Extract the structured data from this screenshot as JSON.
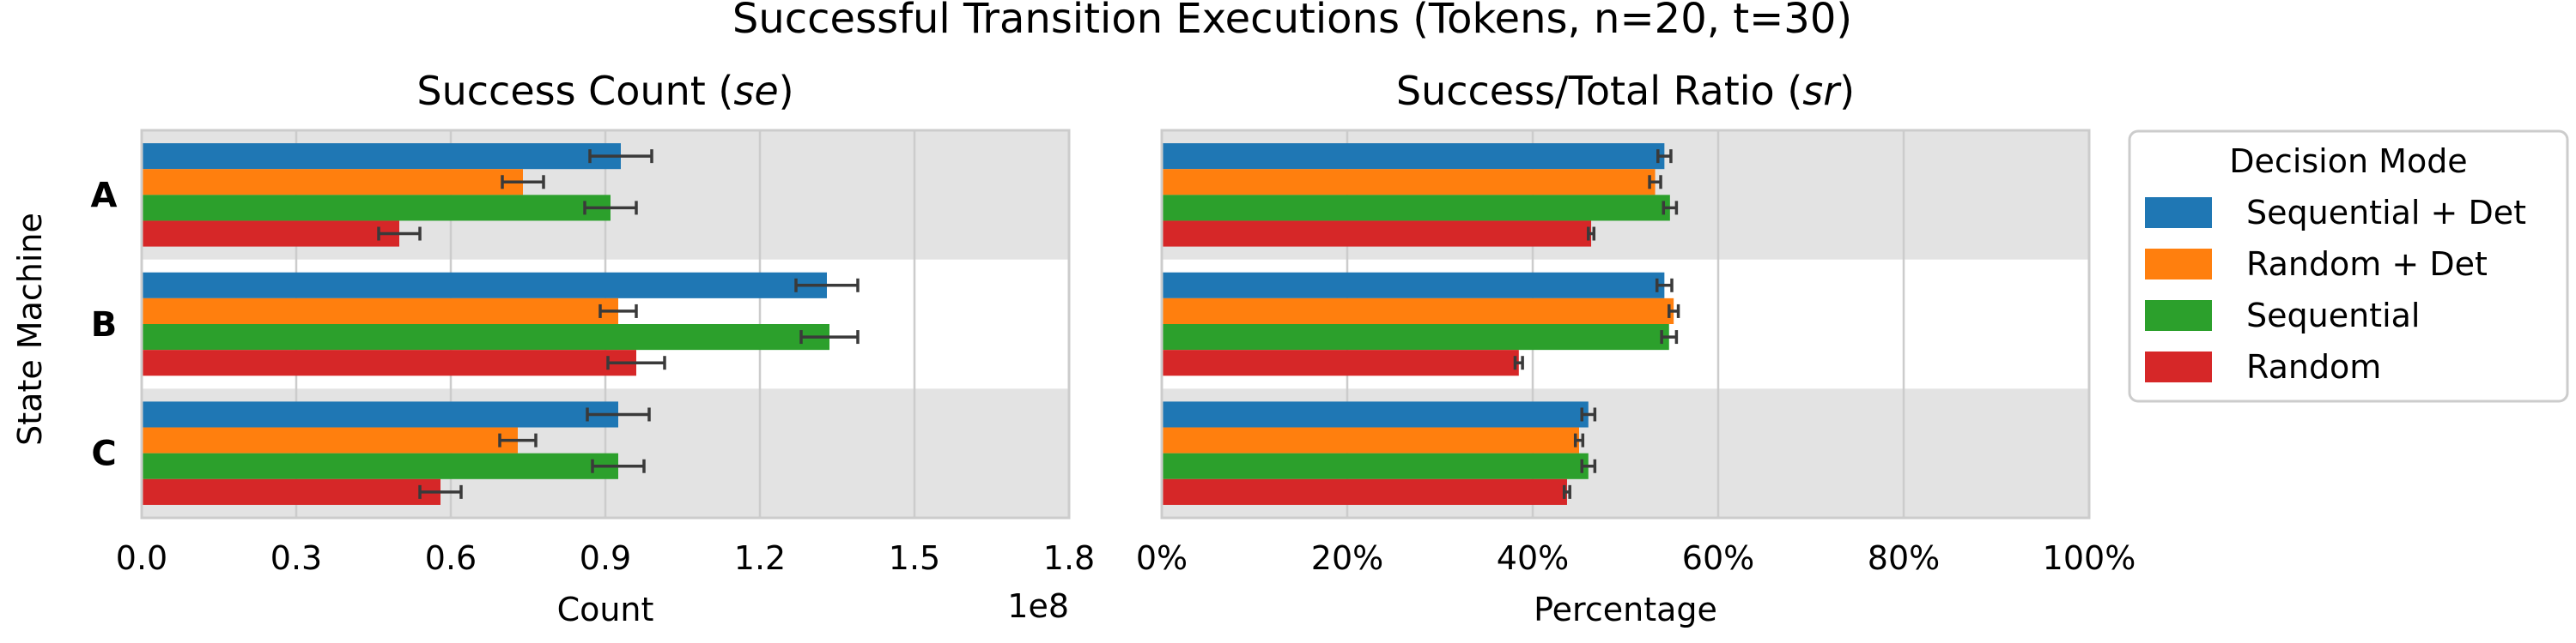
{
  "figure": {
    "title": "Successful Transition Executions (Tokens, n=20, t=30)",
    "ylabel": "State Machine"
  },
  "colors": {
    "series": [
      "#1f77b4",
      "#ff7f0e",
      "#2ca02c",
      "#d62728"
    ],
    "band": "#e3e3e3",
    "grid": "#cccccc",
    "error": "#3a3a3a"
  },
  "legend": {
    "title": "Decision Mode",
    "placement": "right",
    "items": [
      "Sequential + Det",
      "Random + Det",
      "Sequential",
      "Random"
    ]
  },
  "chart_data": [
    {
      "type": "bar",
      "orientation": "horizontal",
      "title_main": "Success Count (",
      "title_em": "se",
      "title_tail": ")",
      "xlabel": "Count",
      "offset_label": "1e8",
      "categories": [
        "A",
        "B",
        "C"
      ],
      "xlim": [
        0,
        1.8
      ],
      "xticks": [
        0,
        0.3,
        0.6,
        0.9,
        1.2,
        1.5,
        1.8
      ],
      "xtick_labels": [
        "0.0",
        "0.3",
        "0.6",
        "0.9",
        "1.2",
        "1.5",
        "1.8"
      ],
      "grid": true,
      "series": [
        {
          "name": "Sequential + Det",
          "values": [
            0.93,
            1.33,
            0.925
          ],
          "err": [
            0.06,
            0.06,
            0.06
          ]
        },
        {
          "name": "Random + Det",
          "values": [
            0.74,
            0.925,
            0.73
          ],
          "err": [
            0.04,
            0.035,
            0.035
          ]
        },
        {
          "name": "Sequential",
          "values": [
            0.91,
            1.335,
            0.925
          ],
          "err": [
            0.05,
            0.055,
            0.05
          ]
        },
        {
          "name": "Random",
          "values": [
            0.5,
            0.96,
            0.58
          ],
          "err": [
            0.04,
            0.055,
            0.04
          ]
        }
      ]
    },
    {
      "type": "bar",
      "orientation": "horizontal",
      "title_main": "Success/Total Ratio (",
      "title_em": "sr",
      "title_tail": ")",
      "xlabel": "Percentage",
      "categories": [
        "A",
        "B",
        "C"
      ],
      "xlim": [
        0,
        100
      ],
      "xticks": [
        0,
        20,
        40,
        60,
        80,
        100
      ],
      "xtick_labels": [
        "0%",
        "20%",
        "40%",
        "60%",
        "80%",
        "100%"
      ],
      "grid": true,
      "series": [
        {
          "name": "Sequential + Det",
          "values": [
            54.2,
            54.2,
            46.0
          ],
          "err": [
            0.7,
            0.8,
            0.7
          ]
        },
        {
          "name": "Random + Det",
          "values": [
            53.2,
            55.2,
            45.0
          ],
          "err": [
            0.6,
            0.5,
            0.4
          ]
        },
        {
          "name": "Sequential",
          "values": [
            54.8,
            54.7,
            46.0
          ],
          "err": [
            0.7,
            0.8,
            0.7
          ]
        },
        {
          "name": "Random",
          "values": [
            46.3,
            38.5,
            43.7
          ],
          "err": [
            0.3,
            0.4,
            0.3
          ]
        }
      ]
    }
  ]
}
